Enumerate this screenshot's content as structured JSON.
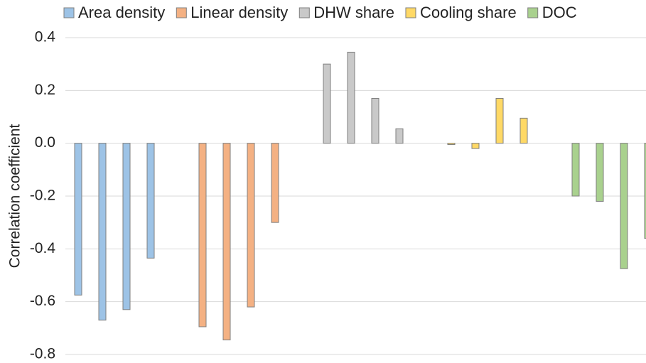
{
  "chart_data": {
    "type": "bar",
    "y_label": "Correlation coefficient",
    "ylim": [
      -0.8,
      0.4
    ],
    "yticks": [
      0.4,
      0.2,
      {
        "value": 0,
        "label": "0.0"
      },
      -0.2,
      -0.4,
      -0.6,
      -0.8
    ],
    "grid": true,
    "legend": "top",
    "series": [
      {
        "name": "Area density",
        "color": "#9dc3e6",
        "values": [
          -0.575,
          -0.67,
          -0.63,
          -0.435
        ]
      },
      {
        "name": "Linear density",
        "color": "#f4b183",
        "values": [
          -0.695,
          -0.745,
          -0.62,
          -0.3
        ]
      },
      {
        "name": "DHW share",
        "color": "#c9c9c9",
        "values": [
          0.3,
          0.345,
          0.17,
          0.055
        ]
      },
      {
        "name": "Cooling share",
        "color": "#ffd966",
        "values": [
          -0.005,
          -0.02,
          0.17,
          0.095
        ]
      },
      {
        "name": "DOC",
        "color": "#a9d18e",
        "values": [
          -0.2,
          -0.22,
          -0.475,
          -0.36
        ]
      }
    ]
  }
}
